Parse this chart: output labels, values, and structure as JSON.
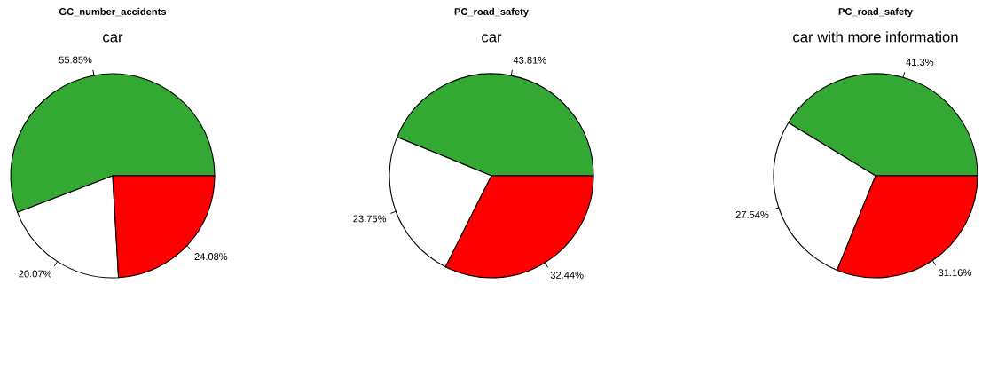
{
  "chart_data": [
    {
      "type": "pie",
      "title": "GC_number_accidents",
      "subtitle": "car",
      "categories": [
        null,
        null,
        null
      ],
      "values": [
        55.85,
        20.07,
        24.08
      ],
      "colors": [
        "#33a833",
        "#ffffff",
        "#ff0000"
      ],
      "value_labels": [
        "55.85%",
        "20.07%",
        "24.08%"
      ]
    },
    {
      "type": "pie",
      "title": "PC_road_safety",
      "subtitle": "car",
      "categories": [
        null,
        null,
        null
      ],
      "values": [
        43.81,
        23.75,
        32.44
      ],
      "colors": [
        "#33a833",
        "#ffffff",
        "#ff0000"
      ],
      "value_labels": [
        "43.81%",
        "23.75%",
        "32.44%"
      ]
    },
    {
      "type": "pie",
      "title": "PC_road_safety",
      "subtitle": "car with more information",
      "categories": [
        null,
        null,
        null
      ],
      "values": [
        41.3,
        27.54,
        31.16
      ],
      "colors": [
        "#33a833",
        "#ffffff",
        "#ff0000"
      ],
      "value_labels": [
        "41.3%",
        "27.54%",
        "31.16%"
      ]
    }
  ]
}
